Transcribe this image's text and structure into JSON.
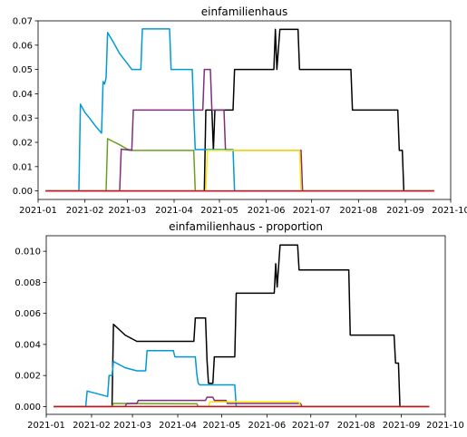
{
  "chart_data": [
    {
      "type": "line",
      "title": "einfamilienhaus",
      "xlabel": "",
      "ylabel": "",
      "xlim": [
        "2021-01-01",
        "2021-10-01"
      ],
      "ylim": [
        -0.0035,
        0.07
      ],
      "x_ticks": [
        "2021-01",
        "2021-02",
        "2021-03",
        "2021-04",
        "2021-05",
        "2021-06",
        "2021-07",
        "2021-08",
        "2021-09",
        "2021-10"
      ],
      "y_ticks": [
        "0.00",
        "0.01",
        "0.02",
        "0.03",
        "0.04",
        "0.05",
        "0.06",
        "0.07"
      ],
      "y_tick_values": [
        0,
        0.01,
        0.02,
        0.03,
        0.04,
        0.05,
        0.06,
        0.07
      ],
      "grid": false,
      "series": [
        {
          "color": "#000000",
          "points": [
            [
              "2021-01-06",
              0
            ],
            [
              "2021-04-21",
              0
            ],
            [
              "2021-04-22",
              0.0333
            ],
            [
              "2021-04-26",
              0.0333
            ],
            [
              "2021-04-27",
              0.0167
            ],
            [
              "2021-04-28",
              0.0333
            ],
            [
              "2021-05-10",
              0.0333
            ],
            [
              "2021-05-11",
              0.05
            ],
            [
              "2021-06-06",
              0.05
            ],
            [
              "2021-06-07",
              0.0665
            ],
            [
              "2021-06-08",
              0.05
            ],
            [
              "2021-06-10",
              0.0665
            ],
            [
              "2021-06-22",
              0.0665
            ],
            [
              "2021-06-23",
              0.05
            ],
            [
              "2021-07-27",
              0.05
            ],
            [
              "2021-07-28",
              0.0333
            ],
            [
              "2021-08-27",
              0.0333
            ],
            [
              "2021-08-28",
              0.0167
            ],
            [
              "2021-08-30",
              0.0167
            ],
            [
              "2021-08-31",
              0
            ],
            [
              "2021-09-20",
              0
            ]
          ]
        },
        {
          "color": "#009ad6",
          "points": [
            [
              "2021-01-06",
              0
            ],
            [
              "2021-01-28",
              0
            ],
            [
              "2021-01-29",
              0.0357
            ],
            [
              "2021-02-01",
              0.0323
            ],
            [
              "2021-02-04",
              0.03
            ],
            [
              "2021-02-08",
              0.0267
            ],
            [
              "2021-02-12",
              0.0238
            ],
            [
              "2021-02-13",
              0.045
            ],
            [
              "2021-02-14",
              0.044
            ],
            [
              "2021-02-15",
              0.0465
            ],
            [
              "2021-02-16",
              0.0652
            ],
            [
              "2021-02-20",
              0.061
            ],
            [
              "2021-02-24",
              0.0565
            ],
            [
              "2021-03-01",
              0.0525
            ],
            [
              "2021-03-04",
              0.05
            ],
            [
              "2021-03-10",
              0.05
            ],
            [
              "2021-03-11",
              0.0667
            ],
            [
              "2021-03-29",
              0.0667
            ],
            [
              "2021-03-30",
              0.05
            ],
            [
              "2021-04-13",
              0.05
            ],
            [
              "2021-04-14",
              0.032
            ],
            [
              "2021-04-15",
              0.017
            ],
            [
              "2021-05-10",
              0.017
            ],
            [
              "2021-05-11",
              0
            ],
            [
              "2021-09-20",
              0
            ]
          ]
        },
        {
          "color": "#6b9e1f",
          "points": [
            [
              "2021-01-06",
              0
            ],
            [
              "2021-02-15",
              0
            ],
            [
              "2021-02-16",
              0.0215
            ],
            [
              "2021-02-24",
              0.019
            ],
            [
              "2021-03-01",
              0.0172
            ],
            [
              "2021-03-05",
              0.0167
            ],
            [
              "2021-04-14",
              0.0167
            ],
            [
              "2021-04-15",
              0
            ],
            [
              "2021-09-20",
              0
            ]
          ]
        },
        {
          "color": "#7e2f7b",
          "points": [
            [
              "2021-01-06",
              0
            ],
            [
              "2021-02-24",
              0
            ],
            [
              "2021-02-25",
              0.0172
            ],
            [
              "2021-03-04",
              0.0167
            ],
            [
              "2021-03-05",
              0.0333
            ],
            [
              "2021-04-20",
              0.0333
            ],
            [
              "2021-04-21",
              0.05
            ],
            [
              "2021-04-25",
              0.05
            ],
            [
              "2021-04-26",
              0.0333
            ],
            [
              "2021-05-04",
              0.0333
            ],
            [
              "2021-05-05",
              0.0167
            ],
            [
              "2021-06-24",
              0.0167
            ],
            [
              "2021-06-25",
              0
            ],
            [
              "2021-09-20",
              0
            ]
          ]
        },
        {
          "color": "#ffe600",
          "points": [
            [
              "2021-01-06",
              0
            ],
            [
              "2021-04-22",
              0
            ],
            [
              "2021-04-23",
              0.0167
            ],
            [
              "2021-06-23",
              0.0167
            ],
            [
              "2021-06-24",
              0
            ],
            [
              "2021-09-20",
              0
            ]
          ]
        },
        {
          "color": "#c8102e",
          "points": [
            [
              "2021-01-06",
              0
            ],
            [
              "2021-09-20",
              0
            ]
          ]
        }
      ]
    },
    {
      "type": "line",
      "title": "einfamilienhaus - proportion",
      "xlabel": "",
      "ylabel": "",
      "xlim": [
        "2021-01-01",
        "2021-10-01"
      ],
      "ylim": [
        -0.0005,
        0.011
      ],
      "x_ticks": [
        "2021-01",
        "2021-02",
        "2021-03",
        "2021-04",
        "2021-05",
        "2021-06",
        "2021-07",
        "2021-08",
        "2021-09",
        "2021-10"
      ],
      "y_ticks": [
        "0.000",
        "0.002",
        "0.004",
        "0.006",
        "0.008",
        "0.010"
      ],
      "y_tick_values": [
        0,
        0.002,
        0.004,
        0.006,
        0.008,
        0.01
      ],
      "grid": false,
      "series": [
        {
          "color": "#000000",
          "points": [
            [
              "2021-01-06",
              0
            ],
            [
              "2021-02-15",
              0
            ],
            [
              "2021-02-16",
              0.0053
            ],
            [
              "2021-02-24",
              0.0046
            ],
            [
              "2021-03-04",
              0.0042
            ],
            [
              "2021-04-12",
              0.0042
            ],
            [
              "2021-04-13",
              0.0057
            ],
            [
              "2021-04-20",
              0.0057
            ],
            [
              "2021-04-21",
              0.003
            ],
            [
              "2021-04-22",
              0.0015
            ],
            [
              "2021-04-25",
              0.0015
            ],
            [
              "2021-04-26",
              0.0032
            ],
            [
              "2021-05-10",
              0.0032
            ],
            [
              "2021-05-11",
              0.0073
            ],
            [
              "2021-06-06",
              0.0073
            ],
            [
              "2021-06-07",
              0.0092
            ],
            [
              "2021-06-08",
              0.0077
            ],
            [
              "2021-06-10",
              0.0104
            ],
            [
              "2021-06-22",
              0.0104
            ],
            [
              "2021-06-23",
              0.0088
            ],
            [
              "2021-07-27",
              0.0088
            ],
            [
              "2021-07-28",
              0.0046
            ],
            [
              "2021-08-27",
              0.0046
            ],
            [
              "2021-08-28",
              0.0028
            ],
            [
              "2021-08-30",
              0.0028
            ],
            [
              "2021-08-31",
              0
            ],
            [
              "2021-09-20",
              0
            ]
          ]
        },
        {
          "color": "#009ad6",
          "points": [
            [
              "2021-01-06",
              0
            ],
            [
              "2021-01-28",
              0
            ],
            [
              "2021-01-29",
              0.001
            ],
            [
              "2021-02-12",
              0.00065
            ],
            [
              "2021-02-13",
              0.002
            ],
            [
              "2021-02-15",
              0.002
            ],
            [
              "2021-02-16",
              0.0029
            ],
            [
              "2021-02-24",
              0.0025
            ],
            [
              "2021-03-04",
              0.0023
            ],
            [
              "2021-03-10",
              0.0023
            ],
            [
              "2021-03-11",
              0.0036
            ],
            [
              "2021-03-29",
              0.0036
            ],
            [
              "2021-03-30",
              0.0032
            ],
            [
              "2021-04-13",
              0.0032
            ],
            [
              "2021-04-14",
              0.0021
            ],
            [
              "2021-04-15",
              0.0015
            ],
            [
              "2021-04-16",
              0.0014
            ],
            [
              "2021-05-10",
              0.0014
            ],
            [
              "2021-05-11",
              0
            ],
            [
              "2021-09-20",
              0
            ]
          ]
        },
        {
          "color": "#6b9e1f",
          "points": [
            [
              "2021-01-06",
              0
            ],
            [
              "2021-02-15",
              0
            ],
            [
              "2021-02-16",
              0.0002
            ],
            [
              "2021-04-14",
              0.00018
            ],
            [
              "2021-04-15",
              0
            ],
            [
              "2021-09-20",
              0
            ]
          ]
        },
        {
          "color": "#7e2f7b",
          "points": [
            [
              "2021-01-06",
              0
            ],
            [
              "2021-02-24",
              0
            ],
            [
              "2021-02-25",
              0.0002
            ],
            [
              "2021-03-04",
              0.0002
            ],
            [
              "2021-03-05",
              0.0004
            ],
            [
              "2021-04-20",
              0.0004
            ],
            [
              "2021-04-21",
              0.0006
            ],
            [
              "2021-04-25",
              0.0006
            ],
            [
              "2021-04-26",
              0.0004
            ],
            [
              "2021-05-04",
              0.0004
            ],
            [
              "2021-05-05",
              0.0002
            ],
            [
              "2021-06-24",
              0.0002
            ],
            [
              "2021-06-25",
              0
            ],
            [
              "2021-09-20",
              0
            ]
          ]
        },
        {
          "color": "#ffe600",
          "points": [
            [
              "2021-01-06",
              0
            ],
            [
              "2021-04-22",
              0
            ],
            [
              "2021-04-23",
              0.0003
            ],
            [
              "2021-06-23",
              0.0003
            ],
            [
              "2021-06-24",
              0
            ],
            [
              "2021-09-20",
              0
            ]
          ]
        },
        {
          "color": "#c8102e",
          "points": [
            [
              "2021-01-06",
              0
            ],
            [
              "2021-09-20",
              0
            ]
          ]
        }
      ]
    }
  ]
}
